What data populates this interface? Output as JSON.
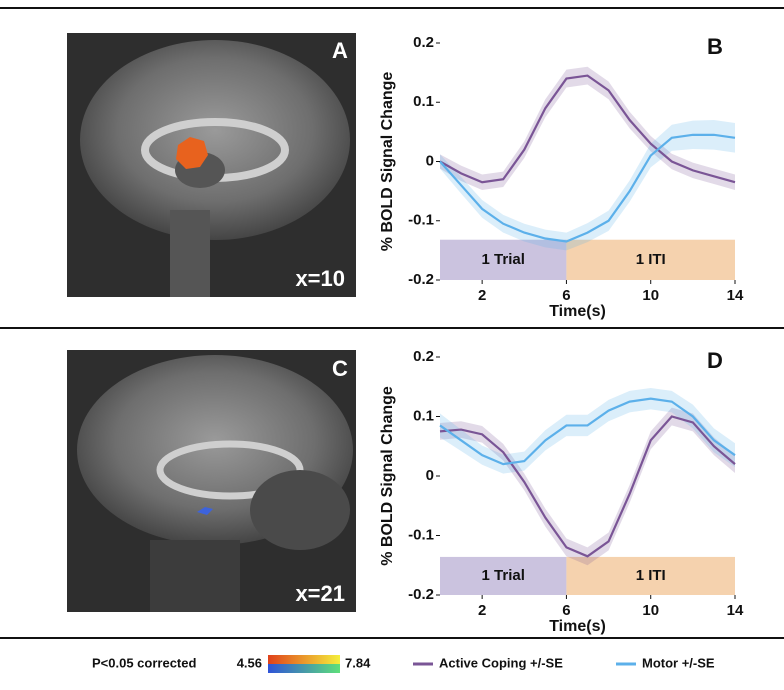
{
  "images": [
    {
      "label": "A",
      "slice": "x=10"
    },
    {
      "label": "C",
      "slice": "x=21"
    }
  ],
  "colorbar": {
    "title": "P<0.05 corrected",
    "min": 4.56,
    "max": 7.84
  },
  "chart_data": [
    {
      "type": "line",
      "panel_label": "B",
      "x_label": "Time(s)",
      "y_label": "% BOLD Signal Change",
      "x": [
        0,
        1,
        2,
        3,
        4,
        5,
        6,
        7,
        8,
        9,
        10,
        11,
        12,
        13,
        14
      ],
      "xlim": [
        0,
        14
      ],
      "xticks": [
        2,
        6,
        10,
        14
      ],
      "ylim": [
        -0.2,
        0.2
      ],
      "yticks": [
        0.2,
        0.1,
        0,
        -0.1,
        -0.2
      ],
      "phases": [
        {
          "label": "1 Trial",
          "start": 0,
          "end": 6,
          "bottom": -0.2,
          "top": -0.132,
          "color": "#cbc3df"
        },
        {
          "label": "1 ITI",
          "start": 6,
          "end": 14,
          "bottom": -0.2,
          "top": -0.132,
          "color": "#f5d2ae"
        }
      ],
      "series": [
        {
          "name": "Active Coping +/-SE",
          "color": "#7a5596",
          "values": [
            0,
            -0.02,
            -0.035,
            -0.03,
            0.02,
            0.09,
            0.14,
            0.145,
            0.12,
            0.07,
            0.03,
            0.0,
            -0.015,
            -0.025,
            -0.035
          ],
          "se": [
            0.012,
            0.013,
            0.013,
            0.013,
            0.014,
            0.015,
            0.015,
            0.015,
            0.015,
            0.014,
            0.013,
            0.013,
            0.013,
            0.013,
            0.013
          ]
        },
        {
          "name": "Motor +/-SE",
          "color": "#5cb0ea",
          "values": [
            0,
            -0.04,
            -0.08,
            -0.105,
            -0.12,
            -0.13,
            -0.135,
            -0.12,
            -0.1,
            -0.05,
            0.01,
            0.04,
            0.045,
            0.045,
            0.04
          ],
          "se": [
            0.012,
            0.014,
            0.015,
            0.015,
            0.015,
            0.015,
            0.015,
            0.016,
            0.017,
            0.018,
            0.02,
            0.022,
            0.024,
            0.025,
            0.025
          ]
        }
      ]
    },
    {
      "type": "line",
      "panel_label": "D",
      "x_label": "Time(s)",
      "y_label": "% BOLD Signal Change",
      "x": [
        0,
        1,
        2,
        3,
        4,
        5,
        6,
        7,
        8,
        9,
        10,
        11,
        12,
        13,
        14
      ],
      "xlim": [
        0,
        14
      ],
      "xticks": [
        2,
        6,
        10,
        14
      ],
      "ylim": [
        -0.2,
        0.2
      ],
      "yticks": [
        0.2,
        0.1,
        0,
        -0.1,
        -0.2
      ],
      "phases": [
        {
          "label": "1 Trial",
          "start": 0,
          "end": 6,
          "bottom": -0.2,
          "top": -0.136,
          "color": "#cbc3df"
        },
        {
          "label": "1 ITI",
          "start": 6,
          "end": 14,
          "bottom": -0.2,
          "top": -0.136,
          "color": "#f5d2ae"
        }
      ],
      "series": [
        {
          "name": "Active Coping +/-SE",
          "color": "#7a5596",
          "values": [
            0.075,
            0.078,
            0.07,
            0.04,
            -0.01,
            -0.07,
            -0.12,
            -0.135,
            -0.11,
            -0.03,
            0.06,
            0.1,
            0.09,
            0.05,
            0.02
          ],
          "se": [
            0.014,
            0.014,
            0.014,
            0.014,
            0.014,
            0.015,
            0.015,
            0.015,
            0.015,
            0.015,
            0.015,
            0.015,
            0.015,
            0.015,
            0.015
          ]
        },
        {
          "name": "Motor +/-SE",
          "color": "#5cb0ea",
          "values": [
            0.085,
            0.06,
            0.035,
            0.02,
            0.025,
            0.06,
            0.085,
            0.085,
            0.11,
            0.125,
            0.13,
            0.125,
            0.1,
            0.06,
            0.035
          ],
          "se": [
            0.02,
            0.018,
            0.016,
            0.016,
            0.016,
            0.017,
            0.018,
            0.018,
            0.018,
            0.018,
            0.018,
            0.018,
            0.02,
            0.02,
            0.02
          ]
        }
      ]
    }
  ]
}
